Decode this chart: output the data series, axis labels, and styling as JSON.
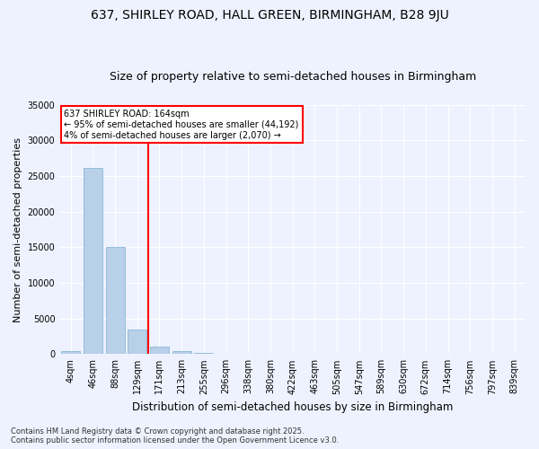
{
  "title_line1": "637, SHIRLEY ROAD, HALL GREEN, BIRMINGHAM, B28 9JU",
  "title_line2": "Size of property relative to semi-detached houses in Birmingham",
  "xlabel": "Distribution of semi-detached houses by size in Birmingham",
  "ylabel": "Number of semi-detached properties",
  "categories": [
    "4sqm",
    "46sqm",
    "88sqm",
    "129sqm",
    "171sqm",
    "213sqm",
    "255sqm",
    "296sqm",
    "338sqm",
    "380sqm",
    "422sqm",
    "463sqm",
    "505sqm",
    "547sqm",
    "589sqm",
    "630sqm",
    "672sqm",
    "714sqm",
    "756sqm",
    "797sqm",
    "839sqm"
  ],
  "values": [
    400,
    26100,
    15100,
    3400,
    1050,
    430,
    120,
    0,
    0,
    0,
    0,
    0,
    0,
    0,
    0,
    0,
    0,
    0,
    0,
    0,
    0
  ],
  "bar_color": "#b8d0e8",
  "bar_edge_color": "#7aafd4",
  "vline_color": "red",
  "vline_pos": 3.5,
  "annotation_text": "637 SHIRLEY ROAD: 164sqm\n← 95% of semi-detached houses are smaller (44,192)\n4% of semi-detached houses are larger (2,070) →",
  "annotation_box_color": "white",
  "annotation_box_edge_color": "red",
  "ylim": [
    0,
    35000
  ],
  "yticks": [
    0,
    5000,
    10000,
    15000,
    20000,
    25000,
    30000,
    35000
  ],
  "background_color": "#eef2ff",
  "grid_color": "white",
  "footnote": "Contains HM Land Registry data © Crown copyright and database right 2025.\nContains public sector information licensed under the Open Government Licence v3.0.",
  "title_fontsize": 10,
  "subtitle_fontsize": 9,
  "tick_fontsize": 7,
  "ylabel_fontsize": 8,
  "xlabel_fontsize": 8.5,
  "footnote_fontsize": 6
}
